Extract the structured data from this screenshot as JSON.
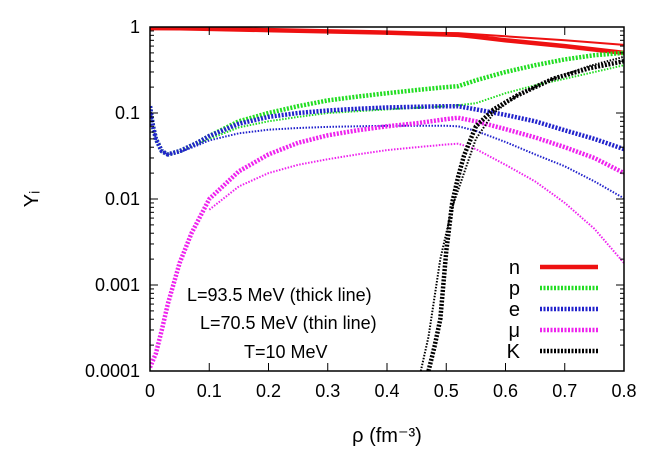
{
  "chart_data": {
    "type": "line",
    "xlabel": "ρ (fm⁻³)",
    "ylabel": "Yᵢ",
    "xlim": [
      0,
      0.8
    ],
    "ylim": [
      0.0001,
      1
    ],
    "y_scale": "log",
    "grid": false,
    "legend_position": "bottom-right",
    "x_ticks": [
      0,
      0.1,
      0.2,
      0.3,
      0.4,
      0.5,
      0.6,
      0.7,
      0.8
    ],
    "x_tick_labels": [
      "0",
      "0.1",
      "0.2",
      "0.3",
      "0.4",
      "0.5",
      "0.6",
      "0.7",
      "0.8"
    ],
    "y_ticks": [
      0.0001,
      0.001,
      0.01,
      0.1,
      1
    ],
    "y_tick_labels": [
      "0.0001",
      "0.001",
      "0.01",
      "0.1",
      "1"
    ],
    "annotations": [
      "L=93.5 MeV (thick line)",
      "L=70.5 MeV (thin line)",
      "T=10 MeV"
    ],
    "legend": [
      {
        "label": "n",
        "color": "#ee1111",
        "dash": "solid"
      },
      {
        "label": "p",
        "color": "#22dd22",
        "dash": "dotted"
      },
      {
        "label": "e",
        "color": "#2222cc",
        "dash": "dotted"
      },
      {
        "label": "μ",
        "color": "#ee22ee",
        "dash": "dotted"
      },
      {
        "label": "K",
        "color": "#000000",
        "dash": "dotted"
      }
    ],
    "series": [
      {
        "name": "n",
        "color": "#ee1111",
        "dash": "solid",
        "width": 4.5,
        "points": [
          [
            0,
            0.97
          ],
          [
            0.05,
            0.965
          ],
          [
            0.1,
            0.95
          ],
          [
            0.2,
            0.92
          ],
          [
            0.3,
            0.89
          ],
          [
            0.4,
            0.86
          ],
          [
            0.52,
            0.81
          ],
          [
            0.55,
            0.77
          ],
          [
            0.6,
            0.7
          ],
          [
            0.7,
            0.6
          ],
          [
            0.8,
            0.5
          ]
        ]
      },
      {
        "name": "n",
        "color": "#ee1111",
        "dash": "solid",
        "width": 2,
        "points": [
          [
            0,
            0.97
          ],
          [
            0.05,
            0.965
          ],
          [
            0.1,
            0.95
          ],
          [
            0.2,
            0.92
          ],
          [
            0.3,
            0.9
          ],
          [
            0.4,
            0.87
          ],
          [
            0.52,
            0.85
          ],
          [
            0.6,
            0.78
          ],
          [
            0.7,
            0.7
          ],
          [
            0.8,
            0.62
          ]
        ]
      },
      {
        "name": "p",
        "color": "#22dd22",
        "dash": "dotted",
        "width": 4.5,
        "points": [
          [
            0,
            0.12
          ],
          [
            0.005,
            0.07
          ],
          [
            0.01,
            0.05
          ],
          [
            0.02,
            0.036
          ],
          [
            0.03,
            0.033
          ],
          [
            0.05,
            0.036
          ],
          [
            0.08,
            0.045
          ],
          [
            0.1,
            0.054
          ],
          [
            0.15,
            0.08
          ],
          [
            0.2,
            0.1
          ],
          [
            0.25,
            0.12
          ],
          [
            0.3,
            0.14
          ],
          [
            0.35,
            0.155
          ],
          [
            0.4,
            0.17
          ],
          [
            0.45,
            0.185
          ],
          [
            0.5,
            0.2
          ],
          [
            0.52,
            0.205
          ],
          [
            0.55,
            0.24
          ],
          [
            0.6,
            0.3
          ],
          [
            0.65,
            0.36
          ],
          [
            0.7,
            0.42
          ],
          [
            0.75,
            0.47
          ],
          [
            0.8,
            0.5
          ]
        ]
      },
      {
        "name": "p",
        "color": "#22dd22",
        "dash": "dotted",
        "width": 2,
        "points": [
          [
            0,
            0.12
          ],
          [
            0.005,
            0.07
          ],
          [
            0.01,
            0.05
          ],
          [
            0.02,
            0.036
          ],
          [
            0.03,
            0.033
          ],
          [
            0.05,
            0.035
          ],
          [
            0.08,
            0.043
          ],
          [
            0.1,
            0.05
          ],
          [
            0.15,
            0.068
          ],
          [
            0.2,
            0.08
          ],
          [
            0.25,
            0.09
          ],
          [
            0.3,
            0.1
          ],
          [
            0.35,
            0.105
          ],
          [
            0.4,
            0.11
          ],
          [
            0.45,
            0.115
          ],
          [
            0.5,
            0.12
          ],
          [
            0.52,
            0.123
          ],
          [
            0.55,
            0.13
          ],
          [
            0.6,
            0.17
          ],
          [
            0.65,
            0.21
          ],
          [
            0.7,
            0.25
          ],
          [
            0.75,
            0.3
          ],
          [
            0.8,
            0.36
          ]
        ]
      },
      {
        "name": "e",
        "color": "#2222cc",
        "dash": "dotted",
        "width": 4.5,
        "points": [
          [
            0,
            0.12
          ],
          [
            0.005,
            0.07
          ],
          [
            0.01,
            0.05
          ],
          [
            0.02,
            0.036
          ],
          [
            0.03,
            0.033
          ],
          [
            0.05,
            0.036
          ],
          [
            0.08,
            0.045
          ],
          [
            0.1,
            0.054
          ],
          [
            0.15,
            0.075
          ],
          [
            0.2,
            0.09
          ],
          [
            0.25,
            0.1
          ],
          [
            0.3,
            0.107
          ],
          [
            0.35,
            0.112
          ],
          [
            0.4,
            0.116
          ],
          [
            0.45,
            0.118
          ],
          [
            0.5,
            0.12
          ],
          [
            0.52,
            0.12
          ],
          [
            0.55,
            0.11
          ],
          [
            0.6,
            0.095
          ],
          [
            0.65,
            0.08
          ],
          [
            0.7,
            0.063
          ],
          [
            0.75,
            0.05
          ],
          [
            0.8,
            0.038
          ]
        ]
      },
      {
        "name": "e",
        "color": "#2222cc",
        "dash": "dotted",
        "width": 2,
        "points": [
          [
            0,
            0.12
          ],
          [
            0.005,
            0.07
          ],
          [
            0.01,
            0.05
          ],
          [
            0.02,
            0.036
          ],
          [
            0.03,
            0.033
          ],
          [
            0.05,
            0.035
          ],
          [
            0.08,
            0.042
          ],
          [
            0.1,
            0.048
          ],
          [
            0.15,
            0.058
          ],
          [
            0.2,
            0.064
          ],
          [
            0.25,
            0.067
          ],
          [
            0.3,
            0.069
          ],
          [
            0.35,
            0.07
          ],
          [
            0.4,
            0.071
          ],
          [
            0.45,
            0.071
          ],
          [
            0.5,
            0.071
          ],
          [
            0.52,
            0.07
          ],
          [
            0.55,
            0.062
          ],
          [
            0.6,
            0.046
          ],
          [
            0.65,
            0.033
          ],
          [
            0.7,
            0.024
          ],
          [
            0.75,
            0.016
          ],
          [
            0.8,
            0.0102
          ]
        ]
      },
      {
        "name": "μ",
        "color": "#ee22ee",
        "dash": "dotted",
        "width": 4.5,
        "points": [
          [
            0,
            0.00011
          ],
          [
            0.01,
            0.00016
          ],
          [
            0.02,
            0.0003
          ],
          [
            0.03,
            0.0006
          ],
          [
            0.05,
            0.0018
          ],
          [
            0.07,
            0.004
          ],
          [
            0.1,
            0.01
          ],
          [
            0.15,
            0.021
          ],
          [
            0.2,
            0.033
          ],
          [
            0.25,
            0.045
          ],
          [
            0.3,
            0.055
          ],
          [
            0.35,
            0.063
          ],
          [
            0.4,
            0.07
          ],
          [
            0.45,
            0.076
          ],
          [
            0.5,
            0.085
          ],
          [
            0.52,
            0.088
          ],
          [
            0.55,
            0.08
          ],
          [
            0.6,
            0.065
          ],
          [
            0.65,
            0.052
          ],
          [
            0.7,
            0.04
          ],
          [
            0.75,
            0.03
          ],
          [
            0.8,
            0.02
          ]
        ]
      },
      {
        "name": "μ",
        "color": "#ee22ee",
        "dash": "dotted",
        "width": 2,
        "points": [
          [
            0.1,
            0.0075
          ],
          [
            0.15,
            0.014
          ],
          [
            0.2,
            0.02
          ],
          [
            0.25,
            0.025
          ],
          [
            0.3,
            0.029
          ],
          [
            0.35,
            0.033
          ],
          [
            0.4,
            0.037
          ],
          [
            0.45,
            0.04
          ],
          [
            0.5,
            0.043
          ],
          [
            0.52,
            0.044
          ],
          [
            0.55,
            0.038
          ],
          [
            0.6,
            0.025
          ],
          [
            0.65,
            0.016
          ],
          [
            0.7,
            0.009
          ],
          [
            0.75,
            0.0045
          ],
          [
            0.8,
            0.0018
          ]
        ]
      },
      {
        "name": "K",
        "color": "#000000",
        "dash": "dotted",
        "width": 4.5,
        "points": [
          [
            0.47,
            0.0001
          ],
          [
            0.48,
            0.00019
          ],
          [
            0.49,
            0.0004
          ],
          [
            0.5,
            0.0025
          ],
          [
            0.51,
            0.009
          ],
          [
            0.52,
            0.018
          ],
          [
            0.53,
            0.032
          ],
          [
            0.55,
            0.07
          ],
          [
            0.58,
            0.11
          ],
          [
            0.62,
            0.16
          ],
          [
            0.68,
            0.25
          ],
          [
            0.74,
            0.33
          ],
          [
            0.8,
            0.4
          ]
        ]
      },
      {
        "name": "K",
        "color": "#000000",
        "dash": "dotted",
        "width": 2,
        "points": [
          [
            0.457,
            0.0001
          ],
          [
            0.47,
            0.00025
          ],
          [
            0.49,
            0.002
          ],
          [
            0.51,
            0.008
          ],
          [
            0.53,
            0.02
          ],
          [
            0.55,
            0.05
          ],
          [
            0.58,
            0.1
          ],
          [
            0.62,
            0.16
          ],
          [
            0.68,
            0.25
          ],
          [
            0.74,
            0.35
          ],
          [
            0.8,
            0.45
          ]
        ]
      }
    ]
  }
}
